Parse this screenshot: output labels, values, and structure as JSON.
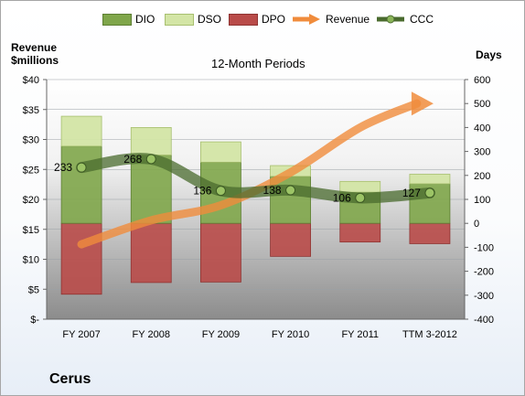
{
  "company": "Cerus",
  "colors": {
    "DIO": "#7fa64a",
    "DSO": "#d3e5a5",
    "DPO": "#b94b49",
    "Revenue": "#f08c3c",
    "CCC": "#4a6b2e"
  },
  "chart_data": {
    "type": "bar",
    "title": "12-Month Periods",
    "y_left_label": [
      "Revenue",
      "$millions"
    ],
    "y_right_label": "Days",
    "categories": [
      "FY 2007",
      "FY 2008",
      "FY 2009",
      "FY 2010",
      "FY 2011",
      "TTM 3-2012"
    ],
    "y_left_ticks": [
      "$40",
      "$35",
      "$30",
      "$25",
      "$20",
      "$15",
      "$10",
      "$5",
      "$-"
    ],
    "y_left_range": [
      0,
      40
    ],
    "y_right_ticks": [
      "600",
      "500",
      "400",
      "300",
      "200",
      "100",
      "0",
      "-100",
      "-200",
      "-300",
      "-400"
    ],
    "y_right_range": [
      -400,
      600
    ],
    "series": [
      {
        "name": "DIO",
        "kind": "stacked-bar",
        "values": [
          322,
          285,
          255,
          196,
          130,
          165
        ]
      },
      {
        "name": "DSO",
        "kind": "stacked-bar",
        "values": [
          125,
          115,
          85,
          45,
          45,
          40
        ]
      },
      {
        "name": "DPO",
        "kind": "stacked-bar",
        "values": [
          -296,
          -247,
          -245,
          -138,
          -78,
          -85
        ]
      },
      {
        "name": "Revenue",
        "kind": "line",
        "axis": "left",
        "values": [
          12.5,
          16.5,
          19.0,
          24.5,
          32.0,
          36.0
        ]
      },
      {
        "name": "CCC",
        "kind": "line",
        "axis": "right",
        "values": [
          233,
          268,
          136,
          138,
          106,
          127
        ]
      }
    ],
    "data_labels": [
      "233",
      "268",
      "136",
      "138",
      "106",
      "127"
    ]
  }
}
